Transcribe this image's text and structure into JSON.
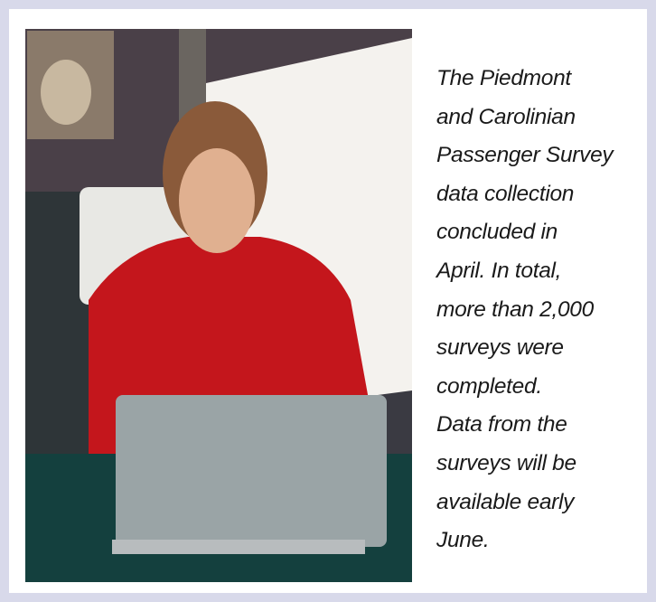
{
  "caption": {
    "lines": [
      "The Piedmont",
      "and Carolinian",
      "Passenger Survey",
      "data collection",
      "concluded in",
      "April. In total,",
      "more than 2,000",
      "surveys were",
      "completed.",
      "Data from the",
      "surveys will be",
      "available early",
      "June."
    ]
  }
}
